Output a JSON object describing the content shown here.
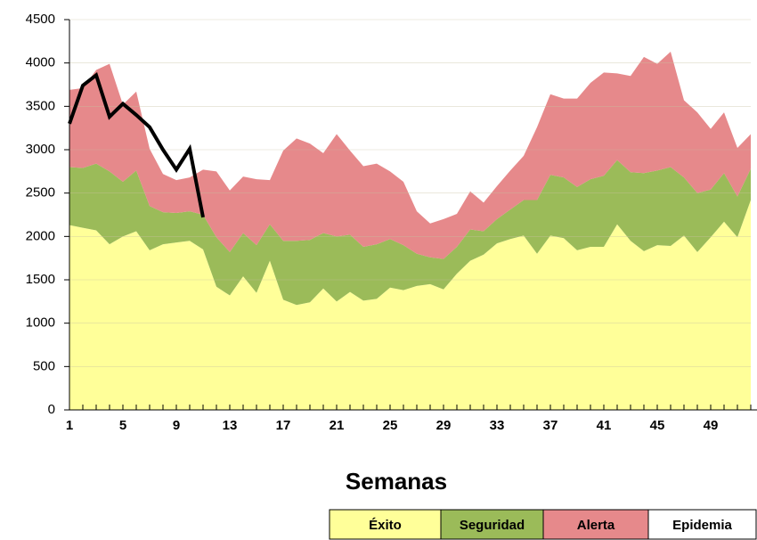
{
  "chart_data": {
    "type": "stacked_area",
    "x": [
      1,
      2,
      3,
      4,
      5,
      6,
      7,
      8,
      9,
      10,
      11,
      12,
      13,
      14,
      15,
      16,
      17,
      18,
      19,
      20,
      21,
      22,
      23,
      24,
      25,
      26,
      27,
      28,
      29,
      30,
      31,
      32,
      33,
      34,
      35,
      36,
      37,
      38,
      39,
      40,
      41,
      42,
      43,
      44,
      45,
      46,
      47,
      48,
      49,
      50,
      51,
      52
    ],
    "xlim": [
      1,
      52
    ],
    "xticks": [
      1,
      5,
      9,
      13,
      17,
      21,
      25,
      29,
      33,
      37,
      41,
      45,
      49
    ],
    "ylim": [
      0,
      4500
    ],
    "yticks": [
      0,
      500,
      1000,
      1500,
      2000,
      2500,
      3000,
      3500,
      4000,
      4500
    ],
    "grid": true,
    "xlabel": "Semanas",
    "series": [
      {
        "name": "Éxito",
        "color": "#ffff99",
        "values": [
          2130,
          2100,
          2070,
          1910,
          2000,
          2060,
          1840,
          1910,
          1930,
          1950,
          1850,
          1420,
          1320,
          1540,
          1350,
          1720,
          1270,
          1210,
          1240,
          1400,
          1250,
          1360,
          1260,
          1280,
          1410,
          1380,
          1430,
          1450,
          1390,
          1570,
          1720,
          1790,
          1920,
          1970,
          2010,
          1800,
          2010,
          1980,
          1840,
          1880,
          1880,
          2140,
          1950,
          1830,
          1900,
          1890,
          2010,
          1820,
          1990,
          2170,
          1990,
          2420
        ]
      },
      {
        "name": "Seguridad",
        "color": "#9bbb59",
        "values": [
          670,
          690,
          770,
          840,
          630,
          700,
          510,
          370,
          340,
          340,
          400,
          570,
          500,
          500,
          550,
          420,
          680,
          740,
          720,
          640,
          750,
          660,
          620,
          630,
          560,
          520,
          370,
          310,
          350,
          310,
          360,
          270,
          280,
          340,
          410,
          620,
          700,
          700,
          730,
          780,
          820,
          740,
          790,
          900,
          860,
          910,
          670,
          680,
          550,
          560,
          470,
          360
        ]
      },
      {
        "name": "Alerta",
        "color": "#e6898b",
        "values": [
          890,
          920,
          1080,
          1240,
          890,
          910,
          660,
          440,
          380,
          390,
          520,
          760,
          710,
          650,
          760,
          510,
          1040,
          1180,
          1110,
          920,
          1180,
          970,
          930,
          930,
          780,
          730,
          490,
          390,
          460,
          380,
          440,
          330,
          380,
          450,
          510,
          840,
          930,
          910,
          1020,
          1110,
          1190,
          1000,
          1110,
          1340,
          1230,
          1330,
          890,
          930,
          700,
          700,
          560,
          400
        ]
      }
    ],
    "epidemic_zone": {
      "name": "Epidemia",
      "color": "#ffffff"
    },
    "line": {
      "color": "#000000",
      "values": [
        3300,
        3740,
        3860,
        3380,
        3530,
        3400,
        3260,
        3000,
        2770,
        3010,
        2220,
        null,
        null,
        null,
        null,
        null,
        null,
        null,
        null,
        null,
        null,
        null,
        null,
        null,
        null,
        null,
        null,
        null,
        null,
        null,
        null,
        null,
        null,
        null,
        null,
        null,
        null,
        null,
        null,
        null,
        null,
        null,
        null,
        null,
        null,
        null,
        null,
        null,
        null,
        null,
        null,
        null
      ]
    }
  }
}
